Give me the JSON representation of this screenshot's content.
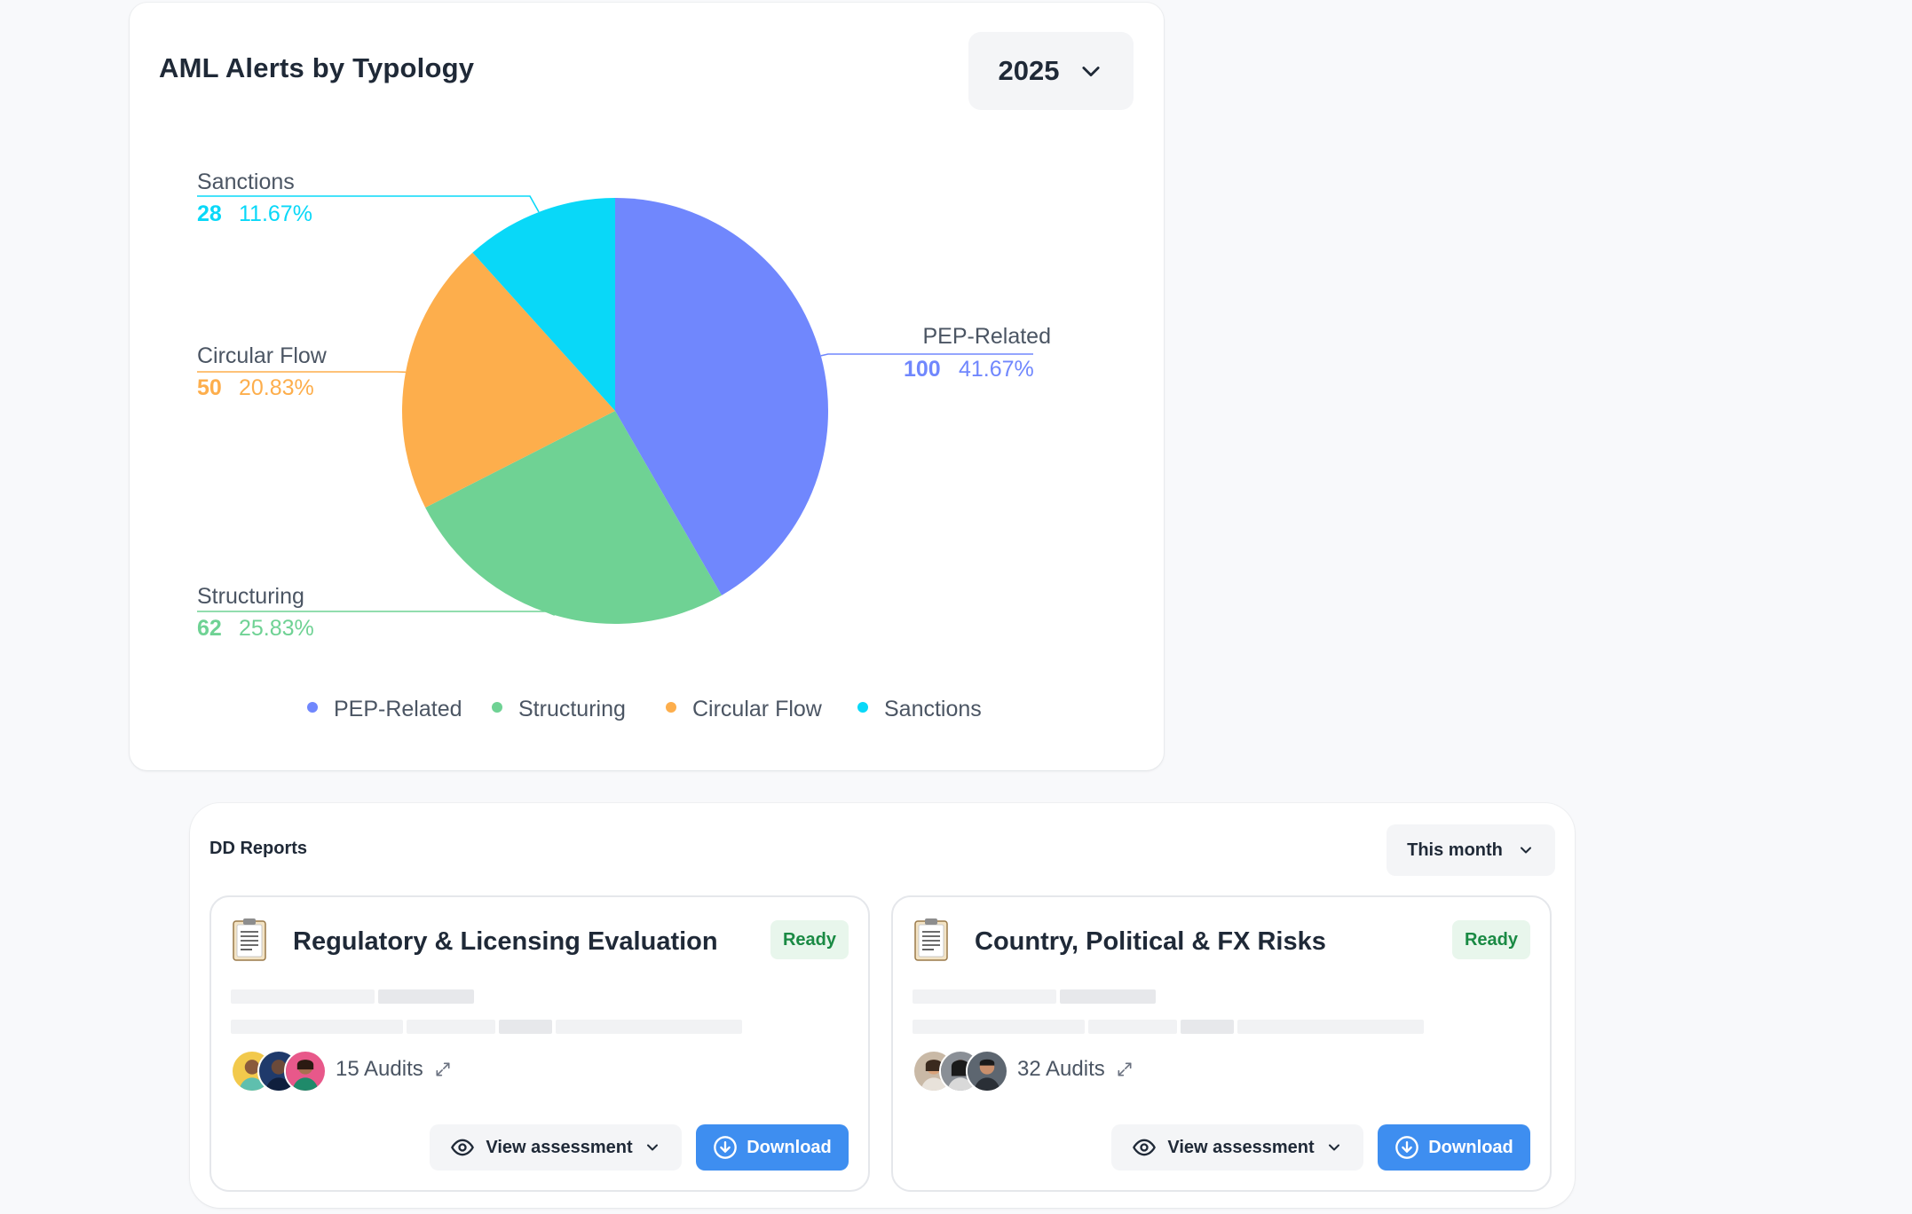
{
  "chart_card": {
    "title": "AML Alerts by Typology",
    "year_select": {
      "value": "2025"
    }
  },
  "chart_data": {
    "type": "pie",
    "title": "AML Alerts by Typology",
    "slices": [
      {
        "label": "PEP-Related",
        "value": 100,
        "percent": "41.67%",
        "color": "#7087fd"
      },
      {
        "label": "Structuring",
        "value": 62,
        "percent": "25.83%",
        "color": "#6fd294"
      },
      {
        "label": "Circular Flow",
        "value": 50,
        "percent": "20.83%",
        "color": "#fdae4c"
      },
      {
        "label": "Sanctions",
        "value": 28,
        "percent": "11.67%",
        "color": "#09d8f8"
      }
    ],
    "legend": [
      "PEP-Related",
      "Structuring",
      "Circular Flow",
      "Sanctions"
    ],
    "legend_position": "bottom"
  },
  "reports": {
    "title": "DD Reports",
    "period_select": {
      "value": "This month"
    },
    "items": [
      {
        "title": "Regulatory & Licensing Evaluation",
        "status": "Ready",
        "audits": "15 Audits",
        "view_label": "View assessment",
        "download_label": "Download"
      },
      {
        "title": "Country, Political & FX Risks",
        "status": "Ready",
        "audits": "32 Audits",
        "view_label": "View assessment",
        "download_label": "Download"
      }
    ]
  },
  "icons": {
    "year_chevron": "chevron-down-icon",
    "period_chevron": "chevron-down-icon",
    "report_doc": "document-icon",
    "audits_link": "external-link-icon",
    "view": "eye-icon",
    "download": "download-icon"
  },
  "colors": {
    "accent": "#3e8ef0",
    "ready_badge_bg": "#e8f6ec",
    "ready_badge_text": "#1a8a44"
  }
}
